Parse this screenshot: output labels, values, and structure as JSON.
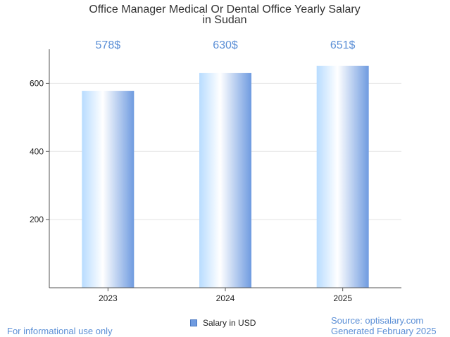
{
  "chart_data": {
    "type": "bar",
    "title_lines": [
      "Office Manager Medical Or Dental Office Yearly Salary",
      "in Sudan"
    ],
    "categories": [
      "2023",
      "2024",
      "2025"
    ],
    "values": [
      578,
      630,
      651
    ],
    "data_labels": [
      "578$",
      "630$",
      "651$"
    ],
    "y_ticks": [
      "200",
      "400",
      "600"
    ],
    "ylim": [
      0,
      700
    ],
    "grid": true,
    "legend": {
      "position": "bottom",
      "entries": [
        "Salary in USD"
      ]
    },
    "colors": {
      "bar_light": "#ffffff",
      "bar_mid": "#b8dcff",
      "bar_dark": "#6f9be0",
      "label": "#5b8fd6"
    }
  },
  "footer": {
    "disclaimer": "For informational use only",
    "source": "Source: optisalary.com",
    "generated": "Generated February 2025"
  }
}
